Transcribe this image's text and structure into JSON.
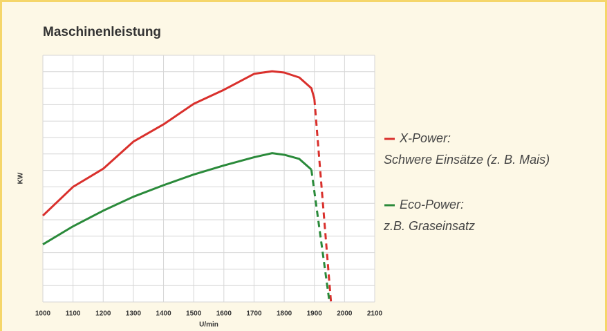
{
  "chart_data": {
    "type": "line",
    "title": "Maschinenleistung",
    "xlabel": "U/min",
    "ylabel": "KW",
    "xlim": [
      1000,
      2100
    ],
    "xticks": [
      1000,
      1100,
      1200,
      1300,
      1400,
      1500,
      1600,
      1700,
      1800,
      1900,
      2000,
      2100
    ],
    "ylim": [
      0,
      15
    ],
    "yticks": [
      0,
      1,
      2,
      3,
      4,
      5,
      6,
      7,
      8,
      9,
      10,
      11,
      12,
      13,
      14,
      15
    ],
    "grid": true,
    "legend": "right",
    "series": [
      {
        "name": "X-Power:",
        "description": "Schwere Einsätze (z. B. Mais)",
        "color": "#d9302c",
        "x": [
          1000,
          1100,
          1200,
          1300,
          1400,
          1500,
          1600,
          1700,
          1760,
          1800,
          1850,
          1890,
          1900
        ],
        "values": [
          5.25,
          7.0,
          8.1,
          9.75,
          10.8,
          12.05,
          12.9,
          13.87,
          14.03,
          13.95,
          13.65,
          13.0,
          12.35
        ],
        "dashed_x": [
          1900,
          1955
        ],
        "dashed_values": [
          12.35,
          0
        ]
      },
      {
        "name": "Eco-Power:",
        "description": "z.B. Graseinsatz",
        "color": "#2a8a3a",
        "x": [
          1000,
          1100,
          1200,
          1300,
          1400,
          1500,
          1600,
          1700,
          1760,
          1800,
          1850,
          1890
        ],
        "values": [
          3.5,
          4.6,
          5.55,
          6.4,
          7.1,
          7.75,
          8.3,
          8.8,
          9.05,
          8.95,
          8.7,
          8.05
        ],
        "dashed_x": [
          1890,
          1950
        ],
        "dashed_values": [
          8.05,
          0
        ]
      }
    ]
  }
}
